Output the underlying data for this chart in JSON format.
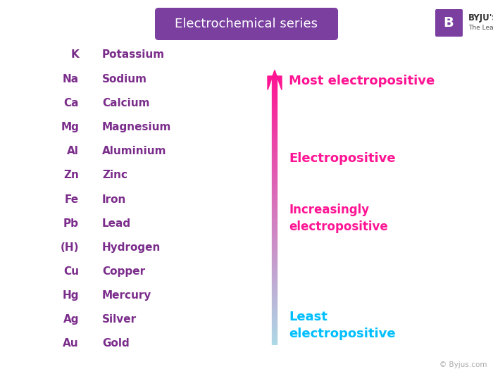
{
  "title": "Electrochemical series",
  "title_bg_color": "#7B3FA0",
  "title_text_color": "#ffffff",
  "background_color": "#ffffff",
  "elements": [
    "K",
    "Na",
    "Ca",
    "Mg",
    "Al",
    "Zn",
    "Fe",
    "Pb",
    "(H)",
    "Cu",
    "Hg",
    "Ag",
    "Au"
  ],
  "names": [
    "Potassium",
    "Sodium",
    "Calcium",
    "Magnesium",
    "Aluminium",
    "Zinc",
    "Iron",
    "Lead",
    "Hydrogen",
    "Copper",
    "Mercury",
    "Silver",
    "Gold"
  ],
  "element_color": "#7B2D8B",
  "name_color": "#7B2D8B",
  "label_most": "Most electropositive",
  "label_electro": "Electropositive",
  "label_incr": "Increasingly\nelectropositive",
  "label_least": "Least\nelectropositive",
  "label_most_color": "#FF1493",
  "label_electro_color": "#FF1493",
  "label_incr_color": "#FF1493",
  "label_least_color": "#00BFFF",
  "arrow_top_color": "#FF1493",
  "arrow_bottom_color": "#ADD8E6",
  "watermark": "© Byjus.com",
  "watermark_color": "#aaaaaa",
  "figwidth": 7.0,
  "figheight": 5.31,
  "dpi": 100
}
